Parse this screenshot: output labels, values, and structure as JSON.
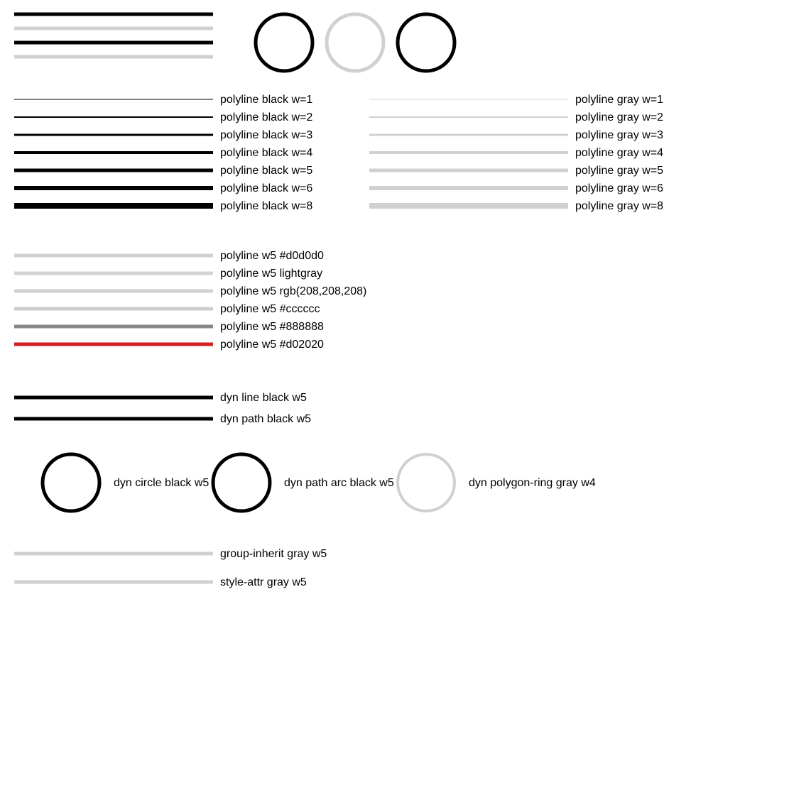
{
  "diag": "true"
}
